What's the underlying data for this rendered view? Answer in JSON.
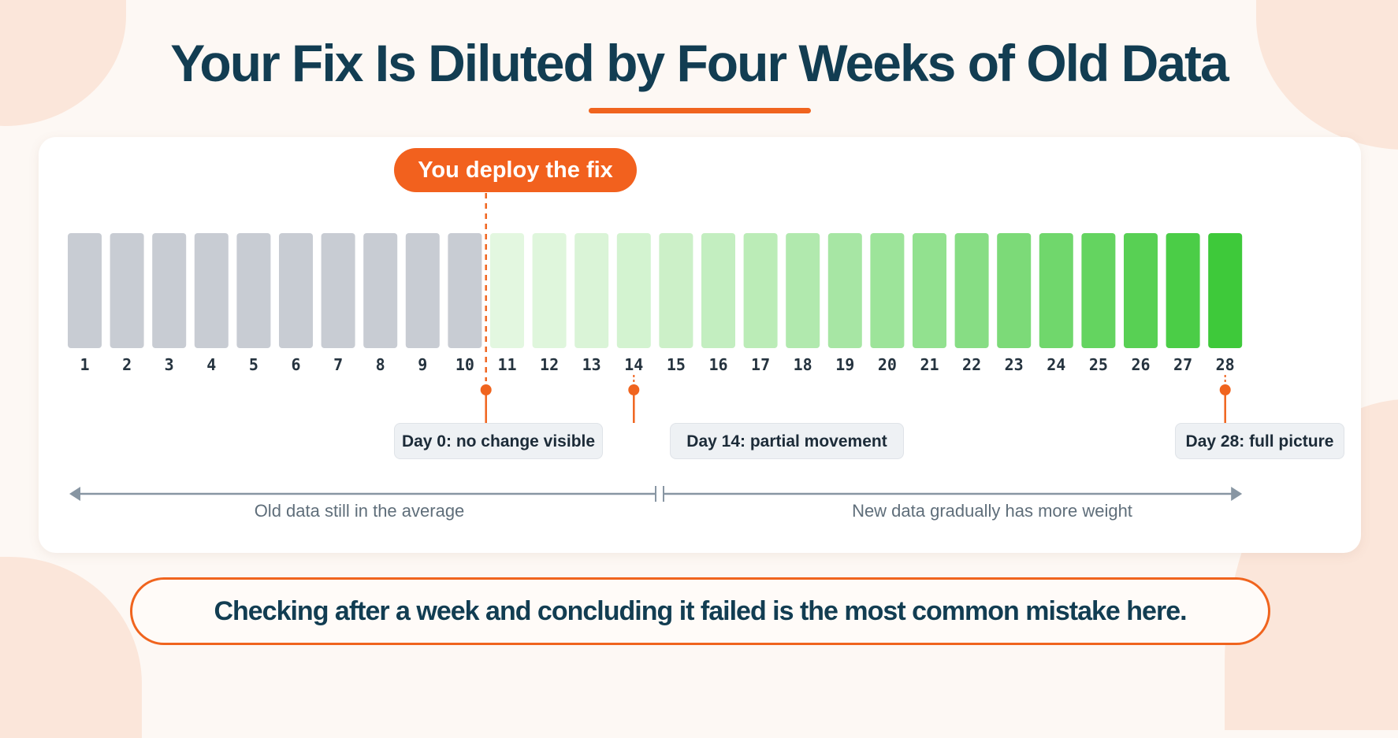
{
  "title": "Your Fix Is Diluted by Four Weeks of Old Data",
  "deploy_label": "You deploy the fix",
  "days": [
    "1",
    "2",
    "3",
    "4",
    "5",
    "6",
    "7",
    "8",
    "9",
    "10",
    "11",
    "12",
    "13",
    "14",
    "15",
    "16",
    "17",
    "18",
    "19",
    "20",
    "21",
    "22",
    "23",
    "24",
    "25",
    "26",
    "27",
    "28"
  ],
  "deploy_after_day": 10,
  "old_days": 10,
  "callouts": [
    {
      "label": "Day 0: no change visible",
      "day": 10
    },
    {
      "label": "Day 14: partial movement",
      "day": 14
    },
    {
      "label": "Day 28: full picture",
      "day": 28
    }
  ],
  "arrows": {
    "old_label": "Old data still in the average",
    "new_label": "New data gradually has more weight"
  },
  "bottom_note": "Checking after a week and concluding it failed is the most common mistake here.",
  "colors": {
    "accent": "#f0641e",
    "title": "#123d52",
    "old_bar": "#c8ccd3",
    "new_bar_start": "#e3f7e0",
    "new_bar_end": "#3ec93a",
    "arrow": "#8896a3"
  }
}
